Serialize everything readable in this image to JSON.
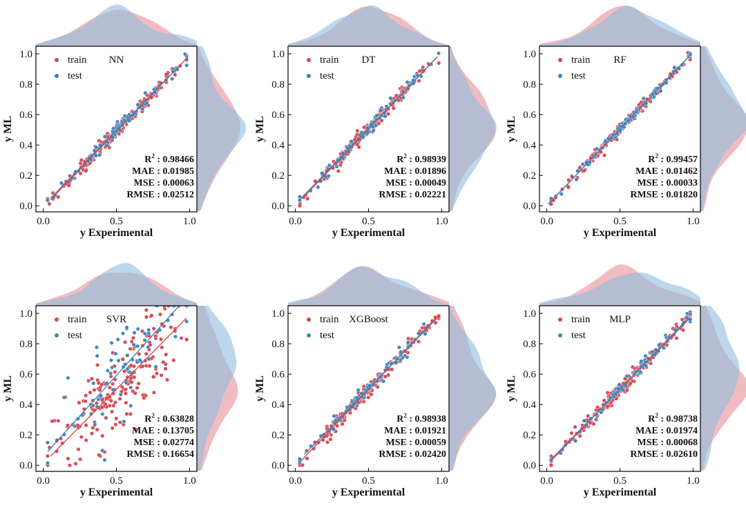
{
  "chart_data": [
    {
      "type": "scatter",
      "title": "NN",
      "xlabel": "y Experimental",
      "ylabel": "y ML",
      "xlim": [
        -0.05,
        1.05
      ],
      "ylim": [
        -0.04,
        1.05
      ],
      "xticks": [
        "0.0",
        "0.5",
        "1.0"
      ],
      "yticks": [
        "0.0",
        "0.2",
        "0.4",
        "0.6",
        "0.8",
        "1.0"
      ],
      "legend": [
        "train",
        "test"
      ],
      "legend_position": "top-left",
      "metrics": {
        "r2": "0.98466",
        "mae": "0.01985",
        "mse": "0.00063",
        "rmse": "0.02512"
      },
      "fit_train": [
        [
          0.05,
          0.04
        ],
        [
          0.99,
          0.98
        ]
      ],
      "fit_test": [
        [
          0.05,
          0.05
        ],
        [
          0.93,
          0.92
        ]
      ]
    },
    {
      "type": "scatter",
      "title": "DT",
      "xlabel": "y Experimental",
      "ylabel": "y ML",
      "xlim": [
        -0.05,
        1.05
      ],
      "ylim": [
        -0.04,
        1.05
      ],
      "xticks": [
        "0.0",
        "0.5",
        "1.0"
      ],
      "yticks": [
        "0.0",
        "0.2",
        "0.4",
        "0.6",
        "0.8",
        "1.0"
      ],
      "legend": [
        "train",
        "test"
      ],
      "legend_position": "top-left",
      "metrics": {
        "r2": "0.98939",
        "mae": "0.01896",
        "mse": "0.00049",
        "rmse": "0.02221"
      },
      "fit_train": [
        [
          0.05,
          0.05
        ],
        [
          0.97,
          0.98
        ]
      ],
      "fit_test": [
        [
          0.03,
          0.04
        ],
        [
          0.96,
          0.97
        ]
      ]
    },
    {
      "type": "scatter",
      "title": "RF",
      "xlabel": "y Experimental",
      "ylabel": "y ML",
      "xlim": [
        -0.05,
        1.05
      ],
      "ylim": [
        -0.04,
        1.05
      ],
      "xticks": [
        "0.0",
        "0.5",
        "1.0"
      ],
      "yticks": [
        "0.0",
        "0.2",
        "0.4",
        "0.6",
        "0.8",
        "1.0"
      ],
      "legend": [
        "train",
        "test"
      ],
      "legend_position": "top-left",
      "metrics": {
        "r2": "0.99457",
        "mae": "0.01462",
        "mse": "0.00033",
        "rmse": "0.01820"
      },
      "fit_train": [
        [
          0.01,
          0.01
        ],
        [
          0.97,
          0.98
        ]
      ],
      "fit_test": [
        [
          0.01,
          0.01
        ],
        [
          0.97,
          0.98
        ]
      ]
    },
    {
      "type": "scatter",
      "title": "SVR",
      "xlabel": "y Experimental",
      "ylabel": "y ML",
      "xlim": [
        -0.05,
        1.05
      ],
      "ylim": [
        -0.04,
        1.05
      ],
      "xticks": [
        "0.0",
        "0.5",
        "1.0"
      ],
      "yticks": [
        "0.0",
        "0.2",
        "0.4",
        "0.6",
        "0.8",
        "1.0"
      ],
      "legend": [
        "train",
        "test"
      ],
      "legend_position": "top-left",
      "metrics": {
        "r2": "0.63828",
        "mae": "0.13705",
        "mse": "0.02774",
        "rmse": "0.16654"
      },
      "fit_train": [
        [
          0.05,
          0.06
        ],
        [
          0.98,
          0.97
        ]
      ],
      "fit_test": [
        [
          0.03,
          0.09
        ],
        [
          0.93,
          1.05
        ]
      ]
    },
    {
      "type": "scatter",
      "title": "XGBoost",
      "xlabel": "y Experimental",
      "ylabel": "y ML",
      "xlim": [
        -0.05,
        1.05
      ],
      "ylim": [
        -0.04,
        1.05
      ],
      "xticks": [
        "0.0",
        "0.5",
        "1.0"
      ],
      "yticks": [
        "0.0",
        "0.2",
        "0.4",
        "0.6",
        "0.8",
        "1.0"
      ],
      "legend": [
        "train",
        "test"
      ],
      "legend_position": "top-left",
      "metrics": {
        "r2": "0.98938",
        "mae": "0.01921",
        "mse": "0.00059",
        "rmse": "0.02420"
      },
      "fit_train": [
        [
          0.04,
          0.03
        ],
        [
          0.98,
          0.99
        ]
      ],
      "fit_test": [
        [
          0.06,
          0.07
        ],
        [
          0.96,
          0.96
        ]
      ]
    },
    {
      "type": "scatter",
      "title": "MLP",
      "xlabel": "y Experimental",
      "ylabel": "y ML",
      "xlim": [
        -0.05,
        1.05
      ],
      "ylim": [
        -0.04,
        1.05
      ],
      "xticks": [
        "0.0",
        "0.5",
        "1.0"
      ],
      "yticks": [
        "0.0",
        "0.2",
        "0.4",
        "0.6",
        "0.8",
        "1.0"
      ],
      "legend": [
        "train",
        "test"
      ],
      "legend_position": "top-left",
      "metrics": {
        "r2": "0.98738",
        "mae": "0.01974",
        "mse": "0.00068",
        "rmse": "0.02610"
      },
      "fit_train": [
        [
          0.03,
          0.03
        ],
        [
          0.97,
          0.97
        ]
      ],
      "fit_test": [
        [
          0.03,
          0.04
        ],
        [
          0.98,
          0.97
        ]
      ]
    }
  ],
  "colors": {
    "train": "#d9434b",
    "test": "#3a85bb",
    "train_kde": "#e88f98",
    "test_kde": "#8fbddd"
  },
  "metric_labels": {
    "r2": "R",
    "r2_sup": "2",
    "mae": "MAE",
    "mse": "MSE",
    "rmse": "RMSE"
  }
}
